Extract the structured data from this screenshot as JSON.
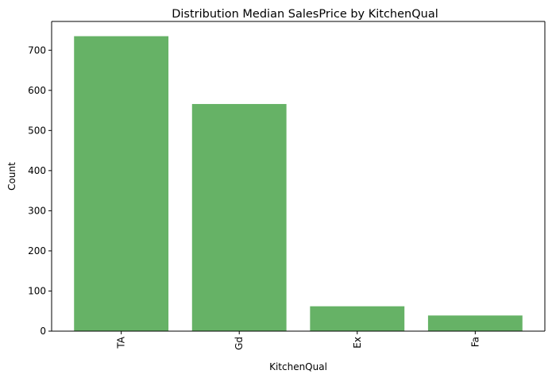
{
  "chart_data": {
    "type": "bar",
    "title": "Distribution Median SalesPrice by KitchenQual",
    "xlabel": "KitchenQual",
    "ylabel": "Count",
    "categories": [
      "TA",
      "Gd",
      "Ex",
      "Fa"
    ],
    "values": [
      735,
      566,
      62,
      39
    ],
    "ylim": [
      0,
      771.75
    ],
    "yticks": [
      0,
      100,
      200,
      300,
      400,
      500,
      600,
      700
    ],
    "ytick_labels": [
      "0",
      "100",
      "200",
      "300",
      "400",
      "500",
      "600",
      "700"
    ],
    "bar_color": "#66b266",
    "grid": false,
    "xtick_rotation": "vertical"
  }
}
